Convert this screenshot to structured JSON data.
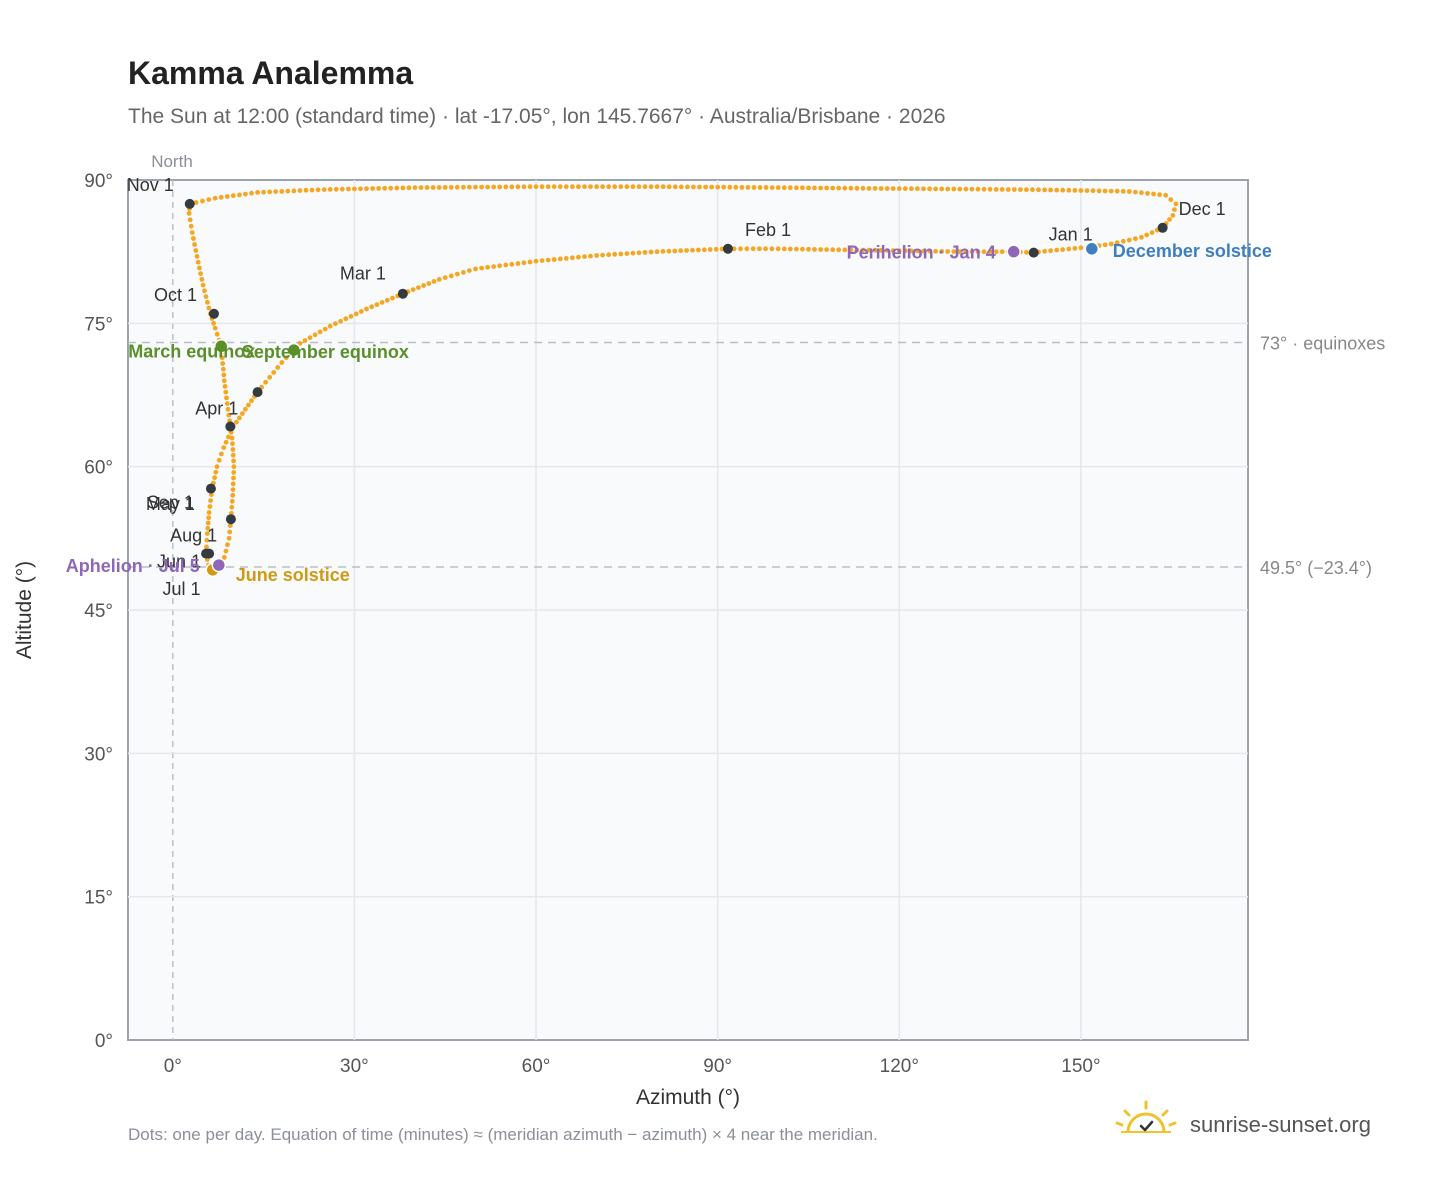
{
  "chart_data": {
    "type": "scatter",
    "title": "Kamma Analemma",
    "subtitle": "The Sun at 12:00 (standard time) · lat -17.05°, lon 145.7667° · Australia/Brisbane · 2026",
    "xlabel": "Azimuth (°)",
    "ylabel": "Altitude (°)",
    "xlim": [
      -7.4,
      177.6
    ],
    "ylim": [
      0,
      90
    ],
    "x_ticks": [
      0,
      30,
      60,
      90,
      120,
      150
    ],
    "x_tick_labels": [
      "0°",
      "30°",
      "60°",
      "90°",
      "120°",
      "150°"
    ],
    "y_ticks": [
      0,
      15,
      30,
      45,
      60,
      75,
      90
    ],
    "y_tick_labels": [
      "0°",
      "15°",
      "30°",
      "45°",
      "60°",
      "75°",
      "90°"
    ],
    "grid": true,
    "north_label": "North",
    "reference_lines": [
      {
        "y": 73,
        "label": "73° · equinoxes"
      },
      {
        "y": 49.5,
        "label": "49.5° (−23.4°)"
      }
    ],
    "series": [
      {
        "name": "Daily sun position",
        "color": "#f5a623",
        "points": [
          [
            2.8,
            87.5
          ],
          [
            7,
            88.1
          ],
          [
            14,
            88.7
          ],
          [
            25,
            89.0
          ],
          [
            40,
            89.2
          ],
          [
            60,
            89.3
          ],
          [
            80,
            89.3
          ],
          [
            100,
            89.2
          ],
          [
            120,
            89.1
          ],
          [
            140,
            89.0
          ],
          [
            150,
            88.9
          ],
          [
            158,
            88.8
          ],
          [
            164,
            88.4
          ],
          [
            165.7,
            87.5
          ],
          [
            165.2,
            86.3
          ],
          [
            163.5,
            85.0
          ],
          [
            160,
            84.0
          ],
          [
            155,
            83.3
          ],
          [
            150,
            82.9
          ],
          [
            145,
            82.6
          ],
          [
            142,
            82.4
          ],
          [
            139,
            82.5
          ],
          [
            130,
            82.5
          ],
          [
            120,
            82.6
          ],
          [
            110,
            82.7
          ],
          [
            100,
            82.8
          ],
          [
            91.7,
            82.8
          ],
          [
            80,
            82.5
          ],
          [
            70,
            82.1
          ],
          [
            60,
            81.5
          ],
          [
            50,
            80.7
          ],
          [
            44,
            79.6
          ],
          [
            38,
            78.1
          ],
          [
            32,
            76.5
          ],
          [
            26,
            74.7
          ],
          [
            21,
            72.9
          ],
          [
            18,
            70.9
          ],
          [
            14,
            67.8
          ],
          [
            12,
            66.0
          ],
          [
            10,
            64.2
          ],
          [
            8.4,
            62.0
          ],
          [
            7.3,
            60.0
          ],
          [
            6.5,
            57.7
          ],
          [
            6.0,
            55.2
          ],
          [
            5.7,
            53.0
          ],
          [
            5.5,
            50.9
          ],
          [
            5.9,
            49.7
          ],
          [
            6.5,
            49.2
          ],
          [
            7.5,
            49.6
          ],
          [
            8.5,
            50.5
          ],
          [
            9.3,
            52.5
          ],
          [
            9.6,
            54.5
          ],
          [
            9.9,
            57.0
          ],
          [
            10.1,
            60.0
          ],
          [
            9.8,
            63.0
          ],
          [
            9.5,
            64.2
          ],
          [
            8.5,
            69.0
          ],
          [
            8.0,
            72.6
          ],
          [
            7.0,
            74.5
          ],
          [
            6.2,
            76.0
          ],
          [
            5.0,
            79.0
          ],
          [
            4.0,
            82.0
          ],
          [
            3.2,
            84.5
          ],
          [
            2.7,
            86.5
          ]
        ]
      }
    ],
    "month_markers": [
      {
        "label": "Jan 1",
        "x": 142.2,
        "y": 82.4
      },
      {
        "label": "Feb 1",
        "x": 91.7,
        "y": 82.8
      },
      {
        "label": "Mar 1",
        "x": 38.0,
        "y": 78.1
      },
      {
        "label": "Apr 1",
        "x": 9.5,
        "y": 64.2
      },
      {
        "label": "May 1",
        "x": 9.6,
        "y": 54.5
      },
      {
        "label": "Jun 1",
        "x": 5.5,
        "y": 50.9
      },
      {
        "label": "Jul 1",
        "x": 6.4,
        "y": 49.2
      },
      {
        "label": "Aug 1",
        "x": 6.0,
        "y": 50.9
      },
      {
        "label": "Sep 1",
        "x": 6.3,
        "y": 57.7
      },
      {
        "label": "Oct 1",
        "x": 6.8,
        "y": 76.0
      },
      {
        "label": "Nov 1",
        "x": 2.8,
        "y": 87.5
      },
      {
        "label": "Dec 1",
        "x": 163.5,
        "y": 85.0
      }
    ],
    "extra_marker": {
      "x": 14.0,
      "y": 67.8
    },
    "events": [
      {
        "label": "March equinox",
        "x": 8.0,
        "y": 72.6,
        "color": "#5a8f29"
      },
      {
        "label": "September equinox",
        "x": 20.0,
        "y": 72.2,
        "color": "#5a8f29"
      },
      {
        "label": "June solstice",
        "x": 6.6,
        "y": 49.2,
        "color": "#d09a13"
      },
      {
        "label": "December solstice",
        "x": 151.8,
        "y": 82.8,
        "color": "#3f7fbf"
      },
      {
        "label": "Perihelion · Jan 4",
        "x": 138.9,
        "y": 82.5,
        "color": "#8e67b8"
      },
      {
        "label": "Aphelion · Jul 5",
        "x": 7.6,
        "y": 49.7,
        "color": "#8e67b8"
      }
    ]
  },
  "footnote": "Dots: one per day. Equation of time (minutes) ≈ (meridian azimuth − azimuth) × 4 near the meridian.",
  "brand": {
    "name": "sunrise-sunset.org",
    "logo_icon": "sun-logo-icon",
    "logo_color": "#f2c12e"
  }
}
